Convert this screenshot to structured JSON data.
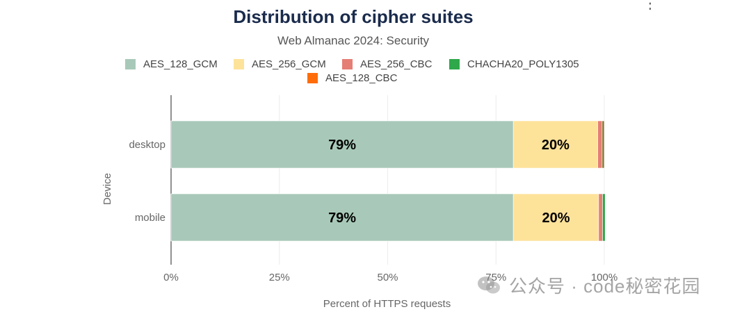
{
  "chart_data": {
    "type": "bar",
    "orientation": "horizontal",
    "stacked": true,
    "title": "Distribution of cipher suites",
    "subtitle": "Web Almanac 2024: Security",
    "xlabel": "Percent of HTTPS requests",
    "ylabel": "Device",
    "xlim": [
      0,
      100
    ],
    "x_ticks": [
      "0%",
      "25%",
      "50%",
      "75%",
      "100%"
    ],
    "categories": [
      "desktop",
      "mobile"
    ],
    "series": [
      {
        "name": "AES_128_GCM",
        "color": "#a8c9b9",
        "values": [
          79,
          79
        ],
        "labels": [
          "79%",
          "79%"
        ]
      },
      {
        "name": "AES_256_GCM",
        "color": "#fde29a",
        "values": [
          19.5,
          19.7
        ],
        "labels": [
          "20%",
          "20%"
        ]
      },
      {
        "name": "AES_256_CBC",
        "color": "#e57e74",
        "values": [
          1.0,
          0.9
        ],
        "labels": [
          "",
          ""
        ]
      },
      {
        "name": "CHACHA20_POLY1305",
        "color": "#2ea84a",
        "values": [
          0.0,
          0.6
        ],
        "labels": [
          "",
          ""
        ]
      },
      {
        "name": "AES_128_CBC",
        "color": "#ff6d0a",
        "values": [
          0.0,
          0.0
        ],
        "labels": [
          "",
          ""
        ]
      },
      {
        "name": "",
        "color": "#8a7a30",
        "values": [
          0.5,
          0.0
        ],
        "labels": [
          "",
          ""
        ]
      }
    ],
    "grid": "vertical"
  },
  "watermark": {
    "text": "公众号 · code秘密花园",
    "icon": "wechat-icon"
  },
  "menu": {
    "icon": "kebab-menu-icon",
    "glyph": "⋮"
  }
}
